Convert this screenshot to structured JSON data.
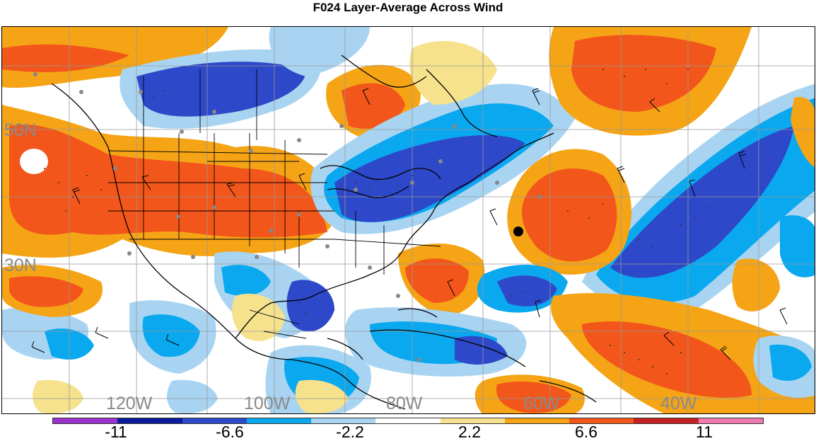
{
  "title": "F024 Layer-Average Across Wind",
  "map": {
    "lat_labels": [
      "50N",
      "30N"
    ],
    "lon_labels": [
      "120W",
      "100W",
      "80W",
      "60W",
      "40W"
    ]
  },
  "legend": {
    "colors": [
      "#9933cc",
      "#0a1a9c",
      "#2d48c8",
      "#0aa8ee",
      "#a8d4f2",
      "#ffffff",
      "#f6e28c",
      "#f5a416",
      "#f2561a",
      "#c42222",
      "#f07ab0"
    ],
    "tick_labels": [
      "-11",
      "-6.6",
      "-2.2",
      "2.2",
      "6.6",
      "11"
    ]
  },
  "colors": {
    "strong_negative": "#2d48c8",
    "negative": "#0aa8ee",
    "weak_negative": "#a8d4f2",
    "weak_positive": "#f6e28c",
    "positive": "#f5a416",
    "strong_positive": "#f2561a"
  }
}
